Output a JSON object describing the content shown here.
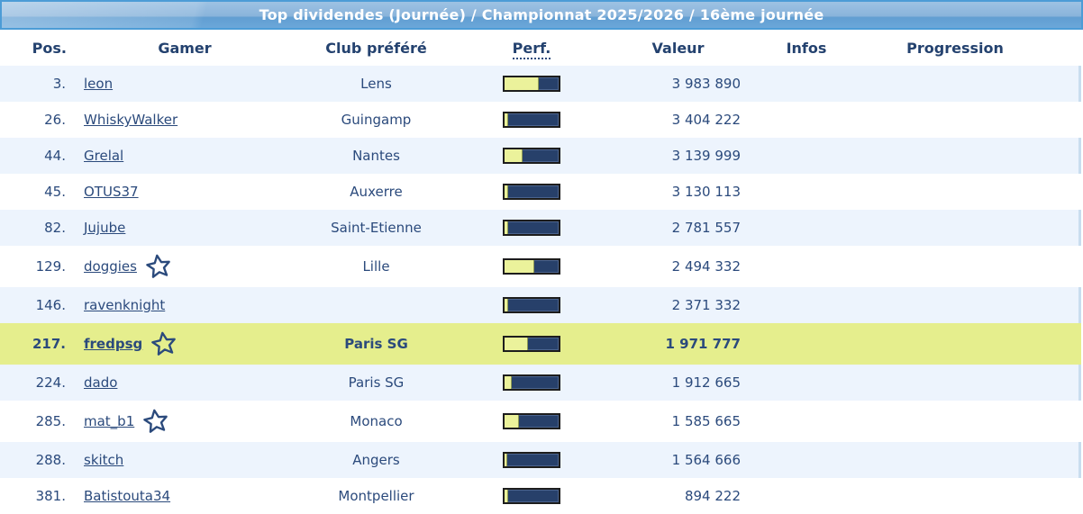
{
  "title": "Top dividendes (Journée) / Championnat 2025/2026 / 16ème journée",
  "colors": {
    "title_bar_top": "#9dc2e3",
    "title_bar_bottom": "#6ba7d9",
    "title_border": "#4c9cd6",
    "title_text": "#ffffff",
    "row_stripe": "#edf4fd",
    "row_highlight": "#e5ee8d",
    "text_navy": "#2b4a7c",
    "perf_track": "#27406a",
    "perf_fill": "#ebf29b",
    "perf_border": "#1d1d1d"
  },
  "icons": {
    "favorite_star": "star-outline"
  },
  "table": {
    "columns": [
      {
        "label": "Pos."
      },
      {
        "label": "Gamer"
      },
      {
        "label": "Club préféré"
      },
      {
        "label": "Perf."
      },
      {
        "label": "Valeur"
      },
      {
        "label": "Infos"
      },
      {
        "label": "Progression"
      }
    ],
    "rows": [
      {
        "pos": "3.",
        "gamer": "leon",
        "club": "Lens",
        "perf_pct": 64,
        "valeur": "3 983 890",
        "star": false,
        "highlight": false
      },
      {
        "pos": "26.",
        "gamer": "WhiskyWalker",
        "club": "Guingamp",
        "perf_pct": 7,
        "valeur": "3 404 222",
        "star": false,
        "highlight": false
      },
      {
        "pos": "44.",
        "gamer": "Grelal",
        "club": "Nantes",
        "perf_pct": 34,
        "valeur": "3 139 999",
        "star": false,
        "highlight": false
      },
      {
        "pos": "45.",
        "gamer": "OTUS37",
        "club": "Auxerre",
        "perf_pct": 6,
        "valeur": "3 130 113",
        "star": false,
        "highlight": false
      },
      {
        "pos": "82.",
        "gamer": "Jujube",
        "club": "Saint-Etienne",
        "perf_pct": 6,
        "valeur": "2 781 557",
        "star": false,
        "highlight": false
      },
      {
        "pos": "129.",
        "gamer": "doggies",
        "club": "Lille",
        "perf_pct": 55,
        "valeur": "2 494 332",
        "star": true,
        "highlight": false
      },
      {
        "pos": "146.",
        "gamer": "ravenknight",
        "club": "",
        "perf_pct": 6,
        "valeur": "2 371 332",
        "star": false,
        "highlight": false
      },
      {
        "pos": "217.",
        "gamer": "fredpsg",
        "club": "Paris SG",
        "perf_pct": 44,
        "valeur": "1 971 777",
        "star": true,
        "highlight": true
      },
      {
        "pos": "224.",
        "gamer": "dado",
        "club": "Paris SG",
        "perf_pct": 14,
        "valeur": "1 912 665",
        "star": false,
        "highlight": false
      },
      {
        "pos": "285.",
        "gamer": "mat_b1",
        "club": "Monaco",
        "perf_pct": 27,
        "valeur": "1 585 665",
        "star": true,
        "highlight": false
      },
      {
        "pos": "288.",
        "gamer": "skitch",
        "club": "Angers",
        "perf_pct": 5,
        "valeur": "1 564 666",
        "star": false,
        "highlight": false
      },
      {
        "pos": "381.",
        "gamer": "Batistouta34",
        "club": "Montpellier",
        "perf_pct": 6,
        "valeur": "894 222",
        "star": false,
        "highlight": false
      }
    ]
  }
}
